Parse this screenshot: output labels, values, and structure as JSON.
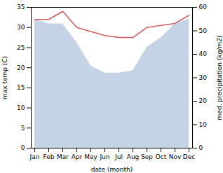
{
  "chart_data": {
    "type": "line",
    "categories": [
      "Jan",
      "Feb",
      "Mar",
      "Apr",
      "May",
      "Jun",
      "Jul",
      "Aug",
      "Sep",
      "Oct",
      "Nov",
      "Dec"
    ],
    "xlabel": "date (month)",
    "ylabel": "max temp (C)",
    "y2label": "med. precipitation (kg/m2)",
    "ylim": [
      0,
      35
    ],
    "yticks": [
      0,
      5,
      10,
      15,
      20,
      25,
      30,
      35
    ],
    "y2lim": [
      0,
      60
    ],
    "y2ticks": [
      0,
      10,
      20,
      30,
      40,
      50,
      60
    ],
    "series": [
      {
        "type": "area",
        "axis": "y2",
        "color": "#b0c4de",
        "values": [
          55.0,
          53.0,
          53.0,
          45.0,
          35.0,
          32.0,
          32.0,
          33.0,
          43.0,
          47.0,
          53.0,
          55.0
        ]
      },
      {
        "type": "line",
        "color": "#cd5c5c",
        "values": [
          32.0,
          32.0,
          34.0,
          30.0,
          29.0,
          28.0,
          27.5,
          27.5,
          30.0,
          30.5,
          31.0,
          33.0
        ]
      }
    ]
  }
}
